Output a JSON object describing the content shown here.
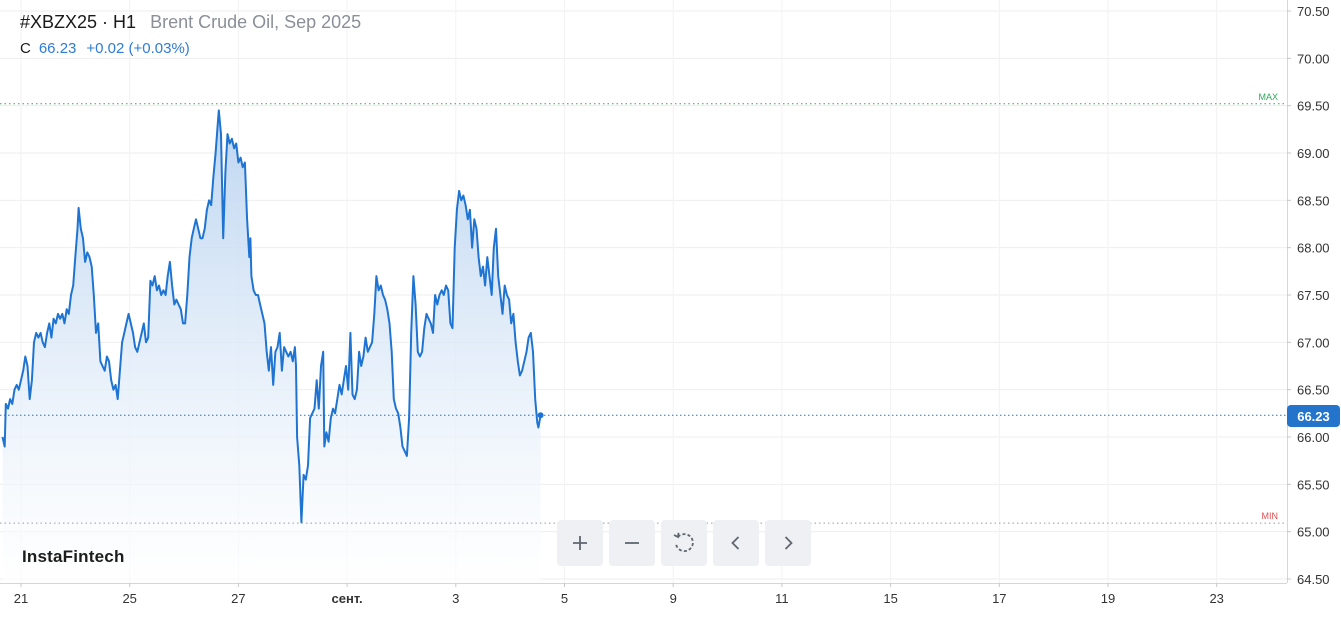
{
  "header": {
    "symbol": "#XBZX25 · H1",
    "name": "Brent Crude Oil, Sep 2025",
    "close_label": "C",
    "close_value": "66.23",
    "change": "+0.02 (+0.03%)"
  },
  "brand": "InstaFintech",
  "current_price_tag": "66.23",
  "toolbar": {
    "zoom_in": "zoom-in-icon",
    "zoom_out": "zoom-out-icon",
    "reset": "reset-icon",
    "back": "chevron-left-icon",
    "forward": "chevron-right-icon"
  },
  "colors": {
    "line": "#1f74d2",
    "area_top": "#b9d3f0",
    "area_bottom": "#ffffff",
    "max_line": "#2eaa5a",
    "min_line": "#e05050",
    "price_tag": "#2474cc",
    "current_line": "#2474cc"
  },
  "chart_data": {
    "type": "area",
    "title": "#XBZX25 · H1",
    "subtitle": "Brent Crude Oil, Sep 2025",
    "ylim": [
      64.5,
      70.5
    ],
    "y_ticks": [
      "64.50",
      "65.00",
      "65.50",
      "66.00",
      "66.50",
      "67.00",
      "67.50",
      "68.00",
      "68.50",
      "69.00",
      "69.50",
      "70.00",
      "70.50"
    ],
    "x_ticks": [
      {
        "label": "21",
        "x": 0
      },
      {
        "label": "25",
        "x": 1
      },
      {
        "label": "27",
        "x": 2
      },
      {
        "label": "сент.",
        "x": 3
      },
      {
        "label": "3",
        "x": 4
      },
      {
        "label": "5",
        "x": 5
      },
      {
        "label": "9",
        "x": 6
      },
      {
        "label": "11",
        "x": 7
      },
      {
        "label": "15",
        "x": 8
      },
      {
        "label": "17",
        "x": 9
      },
      {
        "label": "19",
        "x": 10
      },
      {
        "label": "23",
        "x": 11
      }
    ],
    "max_label": "MAX",
    "max_value": 69.52,
    "min_label": "MIN",
    "min_value": 65.09,
    "current_value": 66.23,
    "grid": true,
    "series": [
      {
        "points": [
          [
            -0.17,
            66.0
          ],
          [
            -0.15,
            65.9
          ],
          [
            -0.14,
            66.35
          ],
          [
            -0.12,
            66.3
          ],
          [
            -0.1,
            66.4
          ],
          [
            -0.08,
            66.35
          ],
          [
            -0.06,
            66.5
          ],
          [
            -0.04,
            66.55
          ],
          [
            -0.02,
            66.5
          ],
          [
            0.0,
            66.6
          ],
          [
            0.02,
            66.7
          ],
          [
            0.04,
            66.85
          ],
          [
            0.06,
            66.75
          ],
          [
            0.08,
            66.4
          ],
          [
            0.1,
            66.6
          ],
          [
            0.12,
            67.0
          ],
          [
            0.14,
            67.1
          ],
          [
            0.16,
            67.05
          ],
          [
            0.18,
            67.1
          ],
          [
            0.2,
            67.0
          ],
          [
            0.22,
            66.95
          ],
          [
            0.24,
            67.1
          ],
          [
            0.26,
            67.2
          ],
          [
            0.28,
            67.05
          ],
          [
            0.3,
            67.25
          ],
          [
            0.32,
            67.2
          ],
          [
            0.34,
            67.3
          ],
          [
            0.36,
            67.25
          ],
          [
            0.38,
            67.3
          ],
          [
            0.4,
            67.2
          ],
          [
            0.42,
            67.35
          ],
          [
            0.44,
            67.3
          ],
          [
            0.46,
            67.5
          ],
          [
            0.48,
            67.6
          ],
          [
            0.5,
            67.9
          ],
          [
            0.52,
            68.2
          ],
          [
            0.53,
            68.42
          ],
          [
            0.55,
            68.2
          ],
          [
            0.57,
            68.1
          ],
          [
            0.59,
            67.85
          ],
          [
            0.61,
            67.95
          ],
          [
            0.63,
            67.9
          ],
          [
            0.65,
            67.8
          ],
          [
            0.67,
            67.5
          ],
          [
            0.69,
            67.1
          ],
          [
            0.71,
            67.2
          ],
          [
            0.73,
            66.8
          ],
          [
            0.75,
            66.75
          ],
          [
            0.77,
            66.7
          ],
          [
            0.79,
            66.85
          ],
          [
            0.81,
            66.8
          ],
          [
            0.83,
            66.6
          ],
          [
            0.85,
            66.5
          ],
          [
            0.87,
            66.55
          ],
          [
            0.89,
            66.4
          ],
          [
            0.91,
            66.7
          ],
          [
            0.93,
            67.0
          ],
          [
            0.95,
            67.1
          ],
          [
            0.97,
            67.2
          ],
          [
            0.99,
            67.3
          ],
          [
            1.01,
            67.2
          ],
          [
            1.03,
            67.1
          ],
          [
            1.05,
            66.95
          ],
          [
            1.07,
            66.9
          ],
          [
            1.09,
            67.0
          ],
          [
            1.11,
            67.1
          ],
          [
            1.13,
            67.2
          ],
          [
            1.15,
            67.0
          ],
          [
            1.17,
            67.05
          ],
          [
            1.19,
            67.65
          ],
          [
            1.21,
            67.6
          ],
          [
            1.23,
            67.7
          ],
          [
            1.25,
            67.55
          ],
          [
            1.27,
            67.6
          ],
          [
            1.29,
            67.5
          ],
          [
            1.31,
            67.55
          ],
          [
            1.33,
            67.5
          ],
          [
            1.35,
            67.7
          ],
          [
            1.37,
            67.85
          ],
          [
            1.39,
            67.6
          ],
          [
            1.41,
            67.4
          ],
          [
            1.43,
            67.45
          ],
          [
            1.45,
            67.4
          ],
          [
            1.47,
            67.35
          ],
          [
            1.49,
            67.2
          ],
          [
            1.51,
            67.2
          ],
          [
            1.53,
            67.5
          ],
          [
            1.55,
            67.9
          ],
          [
            1.57,
            68.1
          ],
          [
            1.59,
            68.2
          ],
          [
            1.61,
            68.3
          ],
          [
            1.63,
            68.2
          ],
          [
            1.65,
            68.1
          ],
          [
            1.67,
            68.1
          ],
          [
            1.69,
            68.2
          ],
          [
            1.71,
            68.4
          ],
          [
            1.73,
            68.5
          ],
          [
            1.75,
            68.45
          ],
          [
            1.77,
            68.75
          ],
          [
            1.79,
            69.0
          ],
          [
            1.81,
            69.3
          ],
          [
            1.82,
            69.45
          ],
          [
            1.84,
            69.2
          ],
          [
            1.86,
            68.1
          ],
          [
            1.88,
            68.8
          ],
          [
            1.9,
            69.2
          ],
          [
            1.92,
            69.1
          ],
          [
            1.94,
            69.15
          ],
          [
            1.96,
            69.05
          ],
          [
            1.98,
            69.1
          ],
          [
            2.0,
            68.9
          ],
          [
            2.02,
            68.95
          ],
          [
            2.04,
            68.85
          ],
          [
            2.06,
            68.9
          ],
          [
            2.08,
            68.3
          ],
          [
            2.1,
            67.9
          ],
          [
            2.11,
            68.1
          ],
          [
            2.12,
            67.7
          ],
          [
            2.14,
            67.55
          ],
          [
            2.16,
            67.5
          ],
          [
            2.18,
            67.5
          ],
          [
            2.2,
            67.4
          ],
          [
            2.22,
            67.3
          ],
          [
            2.24,
            67.2
          ],
          [
            2.26,
            66.9
          ],
          [
            2.28,
            66.7
          ],
          [
            2.3,
            66.95
          ],
          [
            2.32,
            66.55
          ],
          [
            2.34,
            66.9
          ],
          [
            2.36,
            66.95
          ],
          [
            2.38,
            67.1
          ],
          [
            2.4,
            66.7
          ],
          [
            2.42,
            66.95
          ],
          [
            2.44,
            66.9
          ],
          [
            2.46,
            66.85
          ],
          [
            2.48,
            66.9
          ],
          [
            2.5,
            66.8
          ],
          [
            2.52,
            66.95
          ],
          [
            2.53,
            66.75
          ],
          [
            2.54,
            66.0
          ],
          [
            2.56,
            65.7
          ],
          [
            2.58,
            65.1
          ],
          [
            2.6,
            65.6
          ],
          [
            2.62,
            65.55
          ],
          [
            2.64,
            65.7
          ],
          [
            2.66,
            66.2
          ],
          [
            2.68,
            66.25
          ],
          [
            2.7,
            66.3
          ],
          [
            2.72,
            66.6
          ],
          [
            2.74,
            66.3
          ],
          [
            2.76,
            66.75
          ],
          [
            2.78,
            66.9
          ],
          [
            2.79,
            65.9
          ],
          [
            2.81,
            66.05
          ],
          [
            2.83,
            65.95
          ],
          [
            2.85,
            66.2
          ],
          [
            2.87,
            66.3
          ],
          [
            2.89,
            66.25
          ],
          [
            2.91,
            66.4
          ],
          [
            2.93,
            66.55
          ],
          [
            2.95,
            66.45
          ],
          [
            2.97,
            66.6
          ],
          [
            2.99,
            66.75
          ],
          [
            3.01,
            66.5
          ],
          [
            3.03,
            67.1
          ],
          [
            3.05,
            66.45
          ],
          [
            3.07,
            66.4
          ],
          [
            3.09,
            66.5
          ],
          [
            3.11,
            66.9
          ],
          [
            3.13,
            66.75
          ],
          [
            3.15,
            66.85
          ],
          [
            3.17,
            67.05
          ],
          [
            3.19,
            66.9
          ],
          [
            3.21,
            66.95
          ],
          [
            3.23,
            67.0
          ],
          [
            3.25,
            67.3
          ],
          [
            3.27,
            67.7
          ],
          [
            3.29,
            67.55
          ],
          [
            3.31,
            67.6
          ],
          [
            3.33,
            67.5
          ],
          [
            3.35,
            67.45
          ],
          [
            3.37,
            67.35
          ],
          [
            3.39,
            67.2
          ],
          [
            3.41,
            66.9
          ],
          [
            3.43,
            66.4
          ],
          [
            3.45,
            66.3
          ],
          [
            3.47,
            66.25
          ],
          [
            3.49,
            66.1
          ],
          [
            3.51,
            65.9
          ],
          [
            3.53,
            65.85
          ],
          [
            3.55,
            65.8
          ],
          [
            3.57,
            66.2
          ],
          [
            3.59,
            67.1
          ],
          [
            3.61,
            67.7
          ],
          [
            3.63,
            67.4
          ],
          [
            3.65,
            66.9
          ],
          [
            3.67,
            66.85
          ],
          [
            3.69,
            66.9
          ],
          [
            3.71,
            67.15
          ],
          [
            3.73,
            67.3
          ],
          [
            3.75,
            67.25
          ],
          [
            3.77,
            67.2
          ],
          [
            3.79,
            67.1
          ],
          [
            3.81,
            67.5
          ],
          [
            3.83,
            67.4
          ],
          [
            3.85,
            67.5
          ],
          [
            3.87,
            67.55
          ],
          [
            3.89,
            67.5
          ],
          [
            3.91,
            67.6
          ],
          [
            3.93,
            67.55
          ],
          [
            3.95,
            67.2
          ],
          [
            3.97,
            67.15
          ],
          [
            3.99,
            68.0
          ],
          [
            4.01,
            68.4
          ],
          [
            4.03,
            68.6
          ],
          [
            4.05,
            68.5
          ],
          [
            4.07,
            68.55
          ],
          [
            4.09,
            68.45
          ],
          [
            4.11,
            68.3
          ],
          [
            4.13,
            68.4
          ],
          [
            4.15,
            68.0
          ],
          [
            4.17,
            68.3
          ],
          [
            4.19,
            68.2
          ],
          [
            4.21,
            67.9
          ],
          [
            4.23,
            67.7
          ],
          [
            4.25,
            67.8
          ],
          [
            4.27,
            67.6
          ],
          [
            4.29,
            67.9
          ],
          [
            4.31,
            67.7
          ],
          [
            4.33,
            67.5
          ],
          [
            4.35,
            68.0
          ],
          [
            4.37,
            68.2
          ],
          [
            4.39,
            67.7
          ],
          [
            4.41,
            67.5
          ],
          [
            4.43,
            67.3
          ],
          [
            4.45,
            67.6
          ],
          [
            4.47,
            67.5
          ],
          [
            4.49,
            67.45
          ],
          [
            4.51,
            67.2
          ],
          [
            4.53,
            67.3
          ],
          [
            4.55,
            67.0
          ],
          [
            4.57,
            66.8
          ],
          [
            4.59,
            66.65
          ],
          [
            4.61,
            66.7
          ],
          [
            4.63,
            66.8
          ],
          [
            4.65,
            66.9
          ],
          [
            4.67,
            67.05
          ],
          [
            4.69,
            67.1
          ],
          [
            4.71,
            66.9
          ],
          [
            4.73,
            66.4
          ],
          [
            4.75,
            66.15
          ],
          [
            4.76,
            66.1
          ],
          [
            4.78,
            66.23
          ]
        ]
      }
    ]
  }
}
